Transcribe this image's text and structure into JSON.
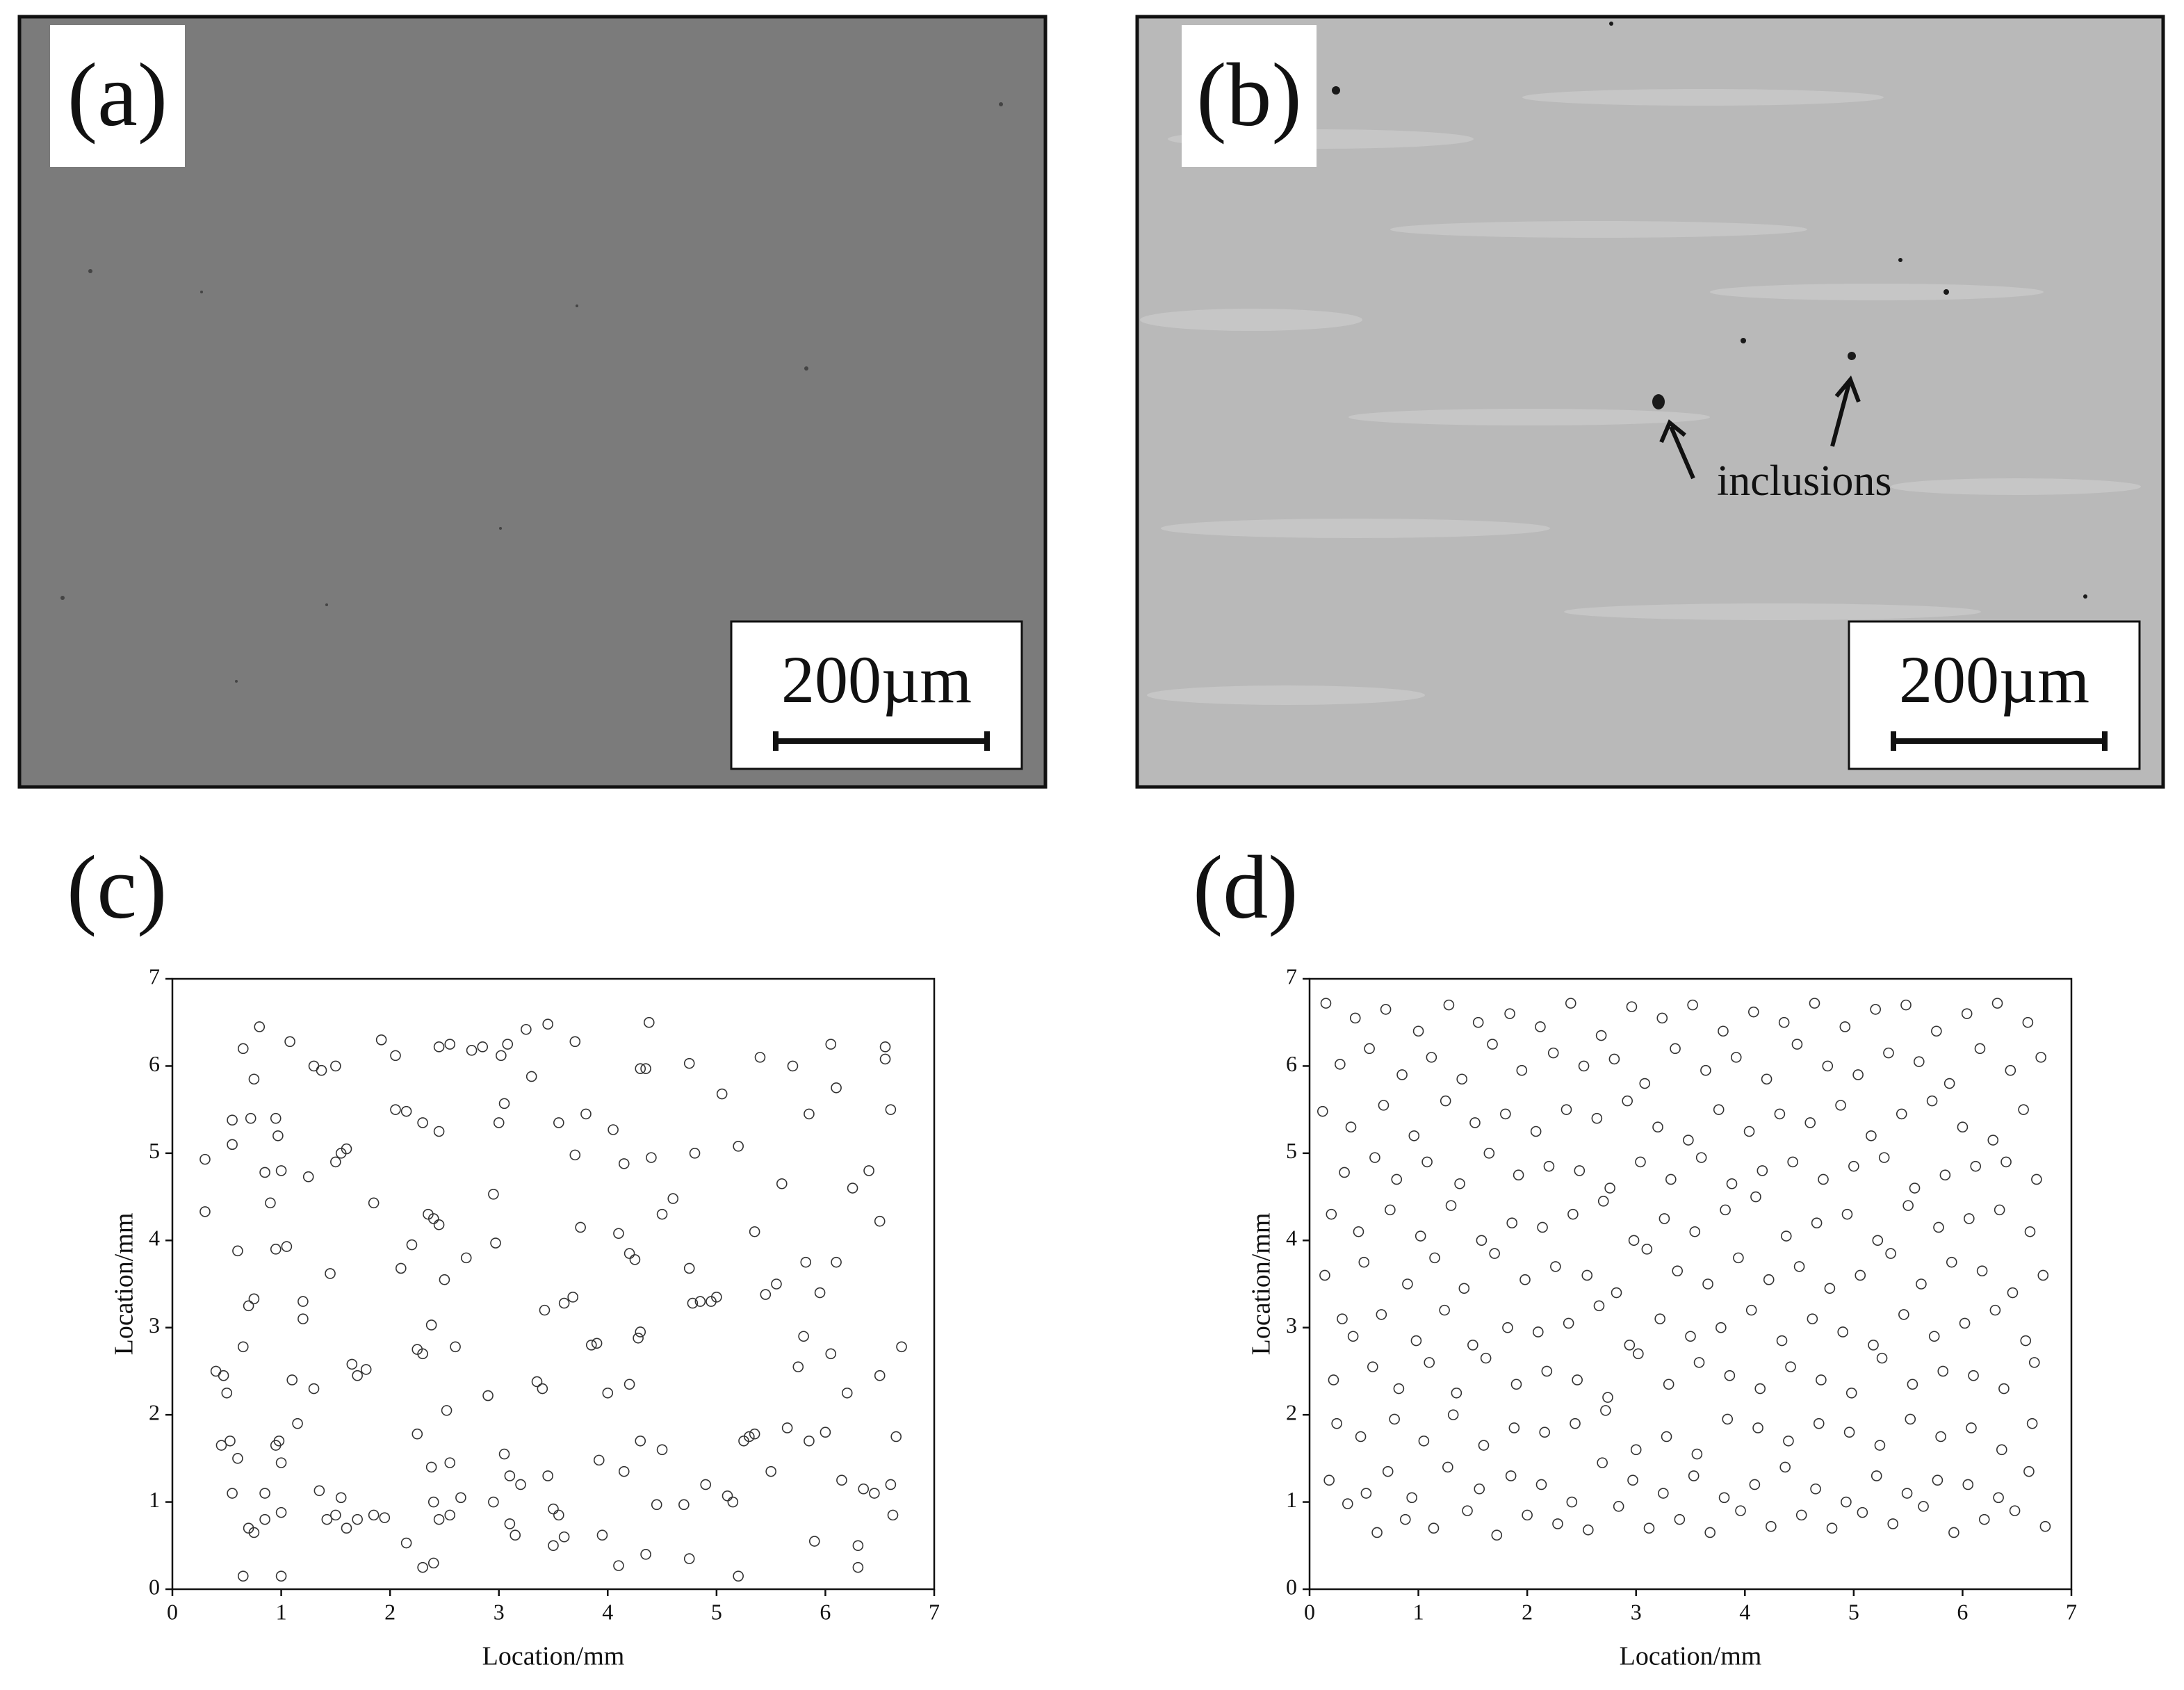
{
  "panels": [
    {
      "label": "(a)",
      "scale_bar": "200µm"
    },
    {
      "label": "(b)",
      "scale_bar": "200µm",
      "annotation": "inclusions"
    }
  ],
  "chart_data": [
    {
      "type": "scatter",
      "label": "(c)",
      "xlabel": "Location/mm",
      "ylabel": "Location/mm",
      "color": "#333333",
      "xlim": [
        0,
        7
      ],
      "ylim": [
        0,
        7
      ],
      "xticks": [
        0,
        1,
        2,
        3,
        4,
        5,
        6,
        7
      ],
      "yticks": [
        0,
        1,
        2,
        3,
        4,
        5,
        6,
        7
      ],
      "x": [
        0.3,
        0.3,
        0.4,
        0.47,
        0.45,
        0.53,
        0.5,
        0.55,
        0.6,
        0.55,
        0.55,
        0.6,
        0.65,
        0.72,
        0.8,
        0.75,
        0.7,
        0.75,
        0.65,
        0.7,
        0.75,
        0.65,
        0.85,
        0.85,
        0.9,
        0.85,
        0.95,
        0.97,
        1.0,
        0.95,
        1.05,
        0.95,
        1.0,
        0.98,
        1.0,
        1.0,
        1.08,
        1.1,
        1.15,
        1.2,
        1.2,
        1.25,
        1.3,
        1.3,
        1.37,
        1.35,
        1.42,
        1.5,
        1.45,
        1.5,
        1.55,
        1.6,
        1.65,
        1.7,
        1.78,
        1.5,
        1.55,
        1.7,
        1.85,
        1.85,
        1.95,
        1.92,
        2.05,
        2.05,
        2.15,
        2.1,
        2.2,
        2.15,
        2.25,
        2.25,
        2.3,
        2.35,
        2.4,
        2.45,
        2.38,
        2.5,
        2.52,
        2.55,
        2.6,
        2.45,
        2.55,
        2.45,
        2.3,
        2.3,
        2.4,
        2.45,
        2.55,
        2.38,
        2.4,
        2.65,
        2.7,
        2.75,
        2.85,
        2.9,
        2.95,
        2.97,
        3.0,
        3.05,
        3.02,
        3.08,
        3.05,
        3.1,
        3.1,
        3.15,
        3.2,
        3.25,
        3.3,
        3.35,
        3.4,
        3.42,
        3.45,
        3.45,
        3.5,
        3.55,
        3.5,
        3.6,
        3.55,
        3.6,
        3.68,
        3.7,
        3.7,
        3.75,
        3.8,
        3.85,
        3.9,
        3.92,
        3.95,
        4.0,
        4.05,
        4.1,
        4.1,
        4.15,
        4.15,
        4.2,
        4.2,
        4.25,
        4.28,
        4.3,
        4.3,
        4.35,
        4.38,
        4.4,
        4.3,
        4.35,
        4.45,
        4.5,
        4.5,
        4.6,
        4.7,
        4.75,
        4.78,
        4.85,
        4.75,
        4.8,
        4.9,
        4.95,
        5.0,
        5.05,
        5.1,
        5.15,
        5.2,
        5.25,
        5.3,
        5.35,
        5.35,
        5.4,
        5.45,
        5.5,
        5.55,
        5.6,
        5.65,
        5.7,
        5.75,
        5.8,
        5.82,
        5.85,
        5.85,
        5.9,
        5.95,
        6.0,
        6.05,
        6.05,
        6.1,
        6.1,
        6.15,
        6.2,
        6.25,
        6.3,
        6.3,
        6.35,
        6.4,
        6.45,
        6.5,
        6.5,
        6.55,
        6.55,
        6.6,
        6.6,
        6.62,
        6.65,
        6.7,
        5.2,
        4.75,
        2.95,
        1.6
      ],
      "values": [
        4.93,
        4.33,
        2.5,
        2.45,
        1.65,
        1.7,
        2.25,
        1.1,
        1.5,
        5.38,
        5.1,
        3.88,
        6.2,
        5.4,
        6.45,
        5.85,
        3.25,
        3.33,
        2.78,
        0.7,
        0.65,
        0.15,
        0.8,
        1.1,
        4.43,
        4.78,
        5.4,
        5.2,
        4.8,
        3.9,
        3.93,
        1.65,
        1.45,
        1.7,
        0.88,
        0.15,
        6.28,
        2.4,
        1.9,
        3.3,
        3.1,
        4.73,
        2.3,
        6.0,
        5.95,
        1.13,
        0.8,
        0.85,
        3.62,
        4.9,
        5.0,
        5.05,
        2.58,
        2.45,
        2.52,
        6.0,
        1.05,
        0.8,
        4.43,
        0.85,
        0.82,
        6.3,
        6.12,
        5.5,
        5.48,
        3.68,
        3.95,
        0.53,
        1.78,
        2.75,
        2.7,
        4.3,
        4.25,
        4.18,
        3.03,
        3.55,
        2.05,
        1.45,
        2.78,
        6.22,
        6.25,
        5.25,
        5.35,
        0.25,
        0.3,
        0.8,
        0.85,
        1.4,
        1.0,
        1.05,
        3.8,
        6.18,
        6.22,
        2.22,
        4.53,
        3.97,
        5.35,
        5.57,
        6.12,
        6.25,
        1.55,
        1.3,
        0.75,
        0.62,
        1.2,
        6.42,
        5.88,
        2.38,
        2.3,
        3.2,
        6.48,
        1.3,
        0.92,
        0.85,
        0.5,
        0.6,
        5.35,
        3.28,
        3.35,
        4.98,
        6.28,
        4.15,
        5.45,
        2.8,
        2.82,
        1.48,
        0.62,
        2.25,
        5.27,
        0.27,
        4.08,
        4.88,
        1.35,
        2.35,
        3.85,
        3.78,
        2.88,
        2.95,
        5.97,
        5.97,
        6.5,
        4.95,
        1.7,
        0.4,
        0.97,
        1.6,
        4.3,
        4.48,
        0.97,
        3.68,
        3.28,
        3.3,
        6.03,
        5.0,
        1.2,
        3.3,
        3.35,
        5.68,
        1.07,
        1.0,
        5.08,
        1.7,
        1.75,
        1.78,
        4.1,
        6.1,
        3.38,
        1.35,
        3.5,
        4.65,
        1.85,
        6.0,
        2.55,
        2.9,
        3.75,
        5.45,
        1.7,
        0.55,
        3.4,
        1.8,
        2.7,
        6.25,
        5.75,
        3.75,
        1.25,
        2.25,
        4.6,
        0.25,
        0.5,
        1.15,
        4.8,
        1.1,
        2.45,
        4.22,
        6.22,
        6.08,
        5.5,
        1.2,
        0.85,
        1.75,
        2.78,
        0.15,
        0.35,
        1.0,
        0.7
      ]
    },
    {
      "type": "scatter",
      "label": "(d)",
      "xlabel": "Location/mm",
      "ylabel": "Location/mm",
      "color": "#333333",
      "xlim": [
        0,
        7
      ],
      "ylim": [
        0,
        7
      ],
      "xticks": [
        0,
        1,
        2,
        3,
        4,
        5,
        6,
        7
      ],
      "yticks": [
        0,
        1,
        2,
        3,
        4,
        5,
        6,
        7
      ],
      "x": [
        0.15,
        0.28,
        0.12,
        0.32,
        0.2,
        0.14,
        0.3,
        0.22,
        0.25,
        0.18,
        0.35,
        0.42,
        0.55,
        0.38,
        0.6,
        0.45,
        0.5,
        0.4,
        0.58,
        0.47,
        0.52,
        0.62,
        0.7,
        0.85,
        0.68,
        0.8,
        0.74,
        0.9,
        0.66,
        0.82,
        0.78,
        0.72,
        0.88,
        1.0,
        1.12,
        0.96,
        1.08,
        1.02,
        1.15,
        0.98,
        1.1,
        1.05,
        0.94,
        1.14,
        1.28,
        1.4,
        1.25,
        1.38,
        1.3,
        1.42,
        1.24,
        1.35,
        1.32,
        1.27,
        1.45,
        1.55,
        1.68,
        1.52,
        1.65,
        1.58,
        1.7,
        1.5,
        1.62,
        1.6,
        1.56,
        1.72,
        1.84,
        1.95,
        1.8,
        1.92,
        1.86,
        1.98,
        1.82,
        1.9,
        1.88,
        1.85,
        2.0,
        2.12,
        2.24,
        2.08,
        2.2,
        2.14,
        2.26,
        2.1,
        2.18,
        2.16,
        2.13,
        2.28,
        2.4,
        2.52,
        2.36,
        2.48,
        2.42,
        2.55,
        2.38,
        2.46,
        2.44,
        2.41,
        2.56,
        2.68,
        2.8,
        2.64,
        2.76,
        2.7,
        2.82,
        2.66,
        2.74,
        2.72,
        2.69,
        2.84,
        2.96,
        3.08,
        2.92,
        3.04,
        2.98,
        3.1,
        2.94,
        3.02,
        3.0,
        2.97,
        3.12,
        3.24,
        3.36,
        3.2,
        3.32,
        3.26,
        3.38,
        3.22,
        3.3,
        3.28,
        3.25,
        3.4,
        3.52,
        3.64,
        3.48,
        3.6,
        3.54,
        3.66,
        3.5,
        3.58,
        3.56,
        3.53,
        3.68,
        3.8,
        3.92,
        3.76,
        3.88,
        3.82,
        3.94,
        3.78,
        3.86,
        3.84,
        3.81,
        3.96,
        4.08,
        4.2,
        4.04,
        4.16,
        4.1,
        4.22,
        4.06,
        4.14,
        4.12,
        4.09,
        4.24,
        4.36,
        4.48,
        4.32,
        4.44,
        4.38,
        4.5,
        4.34,
        4.42,
        4.4,
        4.37,
        4.52,
        4.64,
        4.76,
        4.6,
        4.72,
        4.66,
        4.78,
        4.62,
        4.7,
        4.68,
        4.65,
        4.8,
        4.92,
        5.04,
        4.88,
        5.0,
        4.94,
        5.06,
        4.9,
        4.98,
        4.96,
        4.93,
        5.08,
        5.2,
        5.32,
        5.16,
        5.28,
        5.22,
        5.34,
        5.18,
        5.26,
        5.24,
        5.21,
        5.36,
        5.48,
        5.6,
        5.44,
        5.56,
        5.5,
        5.62,
        5.46,
        5.54,
        5.52,
        5.49,
        5.64,
        5.76,
        5.88,
        5.72,
        5.84,
        5.78,
        5.9,
        5.74,
        5.82,
        5.8,
        5.77,
        5.92,
        6.04,
        6.16,
        6.0,
        6.12,
        6.06,
        6.18,
        6.02,
        6.1,
        6.08,
        6.05,
        6.2,
        6.32,
        6.44,
        6.28,
        6.4,
        6.34,
        6.46,
        6.3,
        6.38,
        6.36,
        6.33,
        6.48,
        6.6,
        6.72,
        6.56,
        6.68,
        6.62,
        6.74,
        6.58,
        6.66,
        6.64,
        6.61,
        6.76
      ],
      "values": [
        6.72,
        6.02,
        5.48,
        4.78,
        4.3,
        3.6,
        3.1,
        2.4,
        1.9,
        1.25,
        0.98,
        6.55,
        6.2,
        5.3,
        4.95,
        4.1,
        3.75,
        2.9,
        2.55,
        1.75,
        1.1,
        0.65,
        6.65,
        5.9,
        5.55,
        4.7,
        4.35,
        3.5,
        3.15,
        2.3,
        1.95,
        1.35,
        0.8,
        6.4,
        6.1,
        5.2,
        4.9,
        4.05,
        3.8,
        2.85,
        2.6,
        1.7,
        1.05,
        0.7,
        6.7,
        5.85,
        5.6,
        4.65,
        4.4,
        3.45,
        3.2,
        2.25,
        2.0,
        1.4,
        0.9,
        6.5,
        6.25,
        5.35,
        5.0,
        4.0,
        3.85,
        2.8,
        2.65,
        1.65,
        1.15,
        0.62,
        6.6,
        5.95,
        5.45,
        4.75,
        4.2,
        3.55,
        3.0,
        2.35,
        1.85,
        1.3,
        0.85,
        6.45,
        6.15,
        5.25,
        4.85,
        4.15,
        3.7,
        2.95,
        2.5,
        1.8,
        1.2,
        0.75,
        6.72,
        6.0,
        5.5,
        4.8,
        4.3,
        3.6,
        3.05,
        2.4,
        1.9,
        1.0,
        0.68,
        6.35,
        6.08,
        5.4,
        4.6,
        4.45,
        3.4,
        3.25,
        2.2,
        2.05,
        1.45,
        0.95,
        6.68,
        5.8,
        5.6,
        4.9,
        4.0,
        3.9,
        2.8,
        2.7,
        1.6,
        1.25,
        0.7,
        6.55,
        6.2,
        5.3,
        4.7,
        4.25,
        3.65,
        3.1,
        2.35,
        1.75,
        1.1,
        0.8,
        6.7,
        5.95,
        5.15,
        4.95,
        4.1,
        3.5,
        2.9,
        2.6,
        1.55,
        1.3,
        0.65,
        6.4,
        6.1,
        5.5,
        4.65,
        4.35,
        3.8,
        3.0,
        2.45,
        1.95,
        1.05,
        0.9,
        6.62,
        5.85,
        5.25,
        4.8,
        4.5,
        3.55,
        3.2,
        2.3,
        1.85,
        1.2,
        0.72,
        6.5,
        6.25,
        5.45,
        4.9,
        4.05,
        3.7,
        2.85,
        2.55,
        1.7,
        1.4,
        0.85,
        6.72,
        6.0,
        5.35,
        4.7,
        4.2,
        3.45,
        3.1,
        2.4,
        1.9,
        1.15,
        0.7,
        6.45,
        5.9,
        5.55,
        4.85,
        4.3,
        3.6,
        2.95,
        2.25,
        1.8,
        1.0,
        0.88,
        6.65,
        6.15,
        5.2,
        4.95,
        4.0,
        3.85,
        2.8,
        2.65,
        1.65,
        1.3,
        0.75,
        6.7,
        6.05,
        5.45,
        4.6,
        4.4,
        3.5,
        3.15,
        2.35,
        1.95,
        1.1,
        0.95,
        6.4,
        5.8,
        5.6,
        4.75,
        4.15,
        3.75,
        2.9,
        2.5,
        1.75,
        1.25,
        0.65,
        6.6,
        6.2,
        5.3,
        4.85,
        4.25,
        3.65,
        3.05,
        2.45,
        1.85,
        1.2,
        0.8,
        6.72,
        5.95,
        5.15,
        4.9,
        4.35,
        3.4,
        3.2,
        2.3,
        1.6,
        1.05,
        0.9,
        6.5,
        6.1,
        5.5,
        4.7,
        4.1,
        3.6,
        2.85,
        2.6,
        1.9,
        1.35,
        0.72
      ]
    }
  ]
}
